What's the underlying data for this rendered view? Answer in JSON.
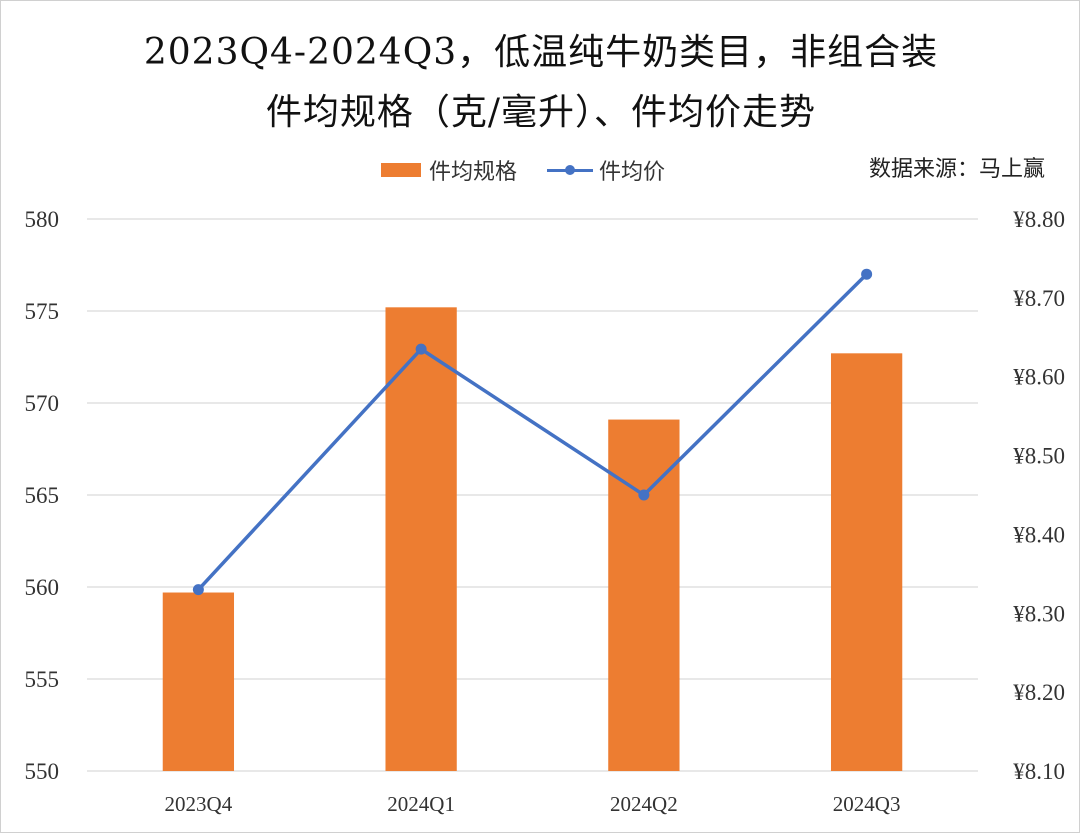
{
  "title_line1": "2023Q4-2024Q3，低温纯牛奶类目，非组合装",
  "title_line2": "件均规格（克/毫升）、件均价走势",
  "source": "数据来源：马上赢",
  "colors": {
    "bar": "#ED7D31",
    "line": "#4472C4",
    "grid": "#d9d9d9"
  },
  "chart_data": {
    "type": "bar",
    "categories": [
      "2023Q4",
      "2024Q1",
      "2024Q2",
      "2024Q3"
    ],
    "series": [
      {
        "name": "件均规格",
        "type": "bar",
        "axis": "left",
        "values": [
          559.7,
          575.2,
          569.1,
          572.7
        ]
      },
      {
        "name": "件均价",
        "type": "line",
        "axis": "right",
        "values": [
          8.33,
          8.635,
          8.45,
          8.73
        ]
      }
    ],
    "y_left": {
      "min": 550,
      "max": 580,
      "step": 5,
      "ticks": [
        "550",
        "555",
        "560",
        "565",
        "570",
        "575",
        "580"
      ]
    },
    "y_right": {
      "min": 8.1,
      "max": 8.8,
      "step": 0.1,
      "ticks": [
        "¥8.10",
        "¥8.20",
        "¥8.30",
        "¥8.40",
        "¥8.50",
        "¥8.60",
        "¥8.70",
        "¥8.80"
      ]
    },
    "grid": true,
    "legend_position": "top"
  }
}
